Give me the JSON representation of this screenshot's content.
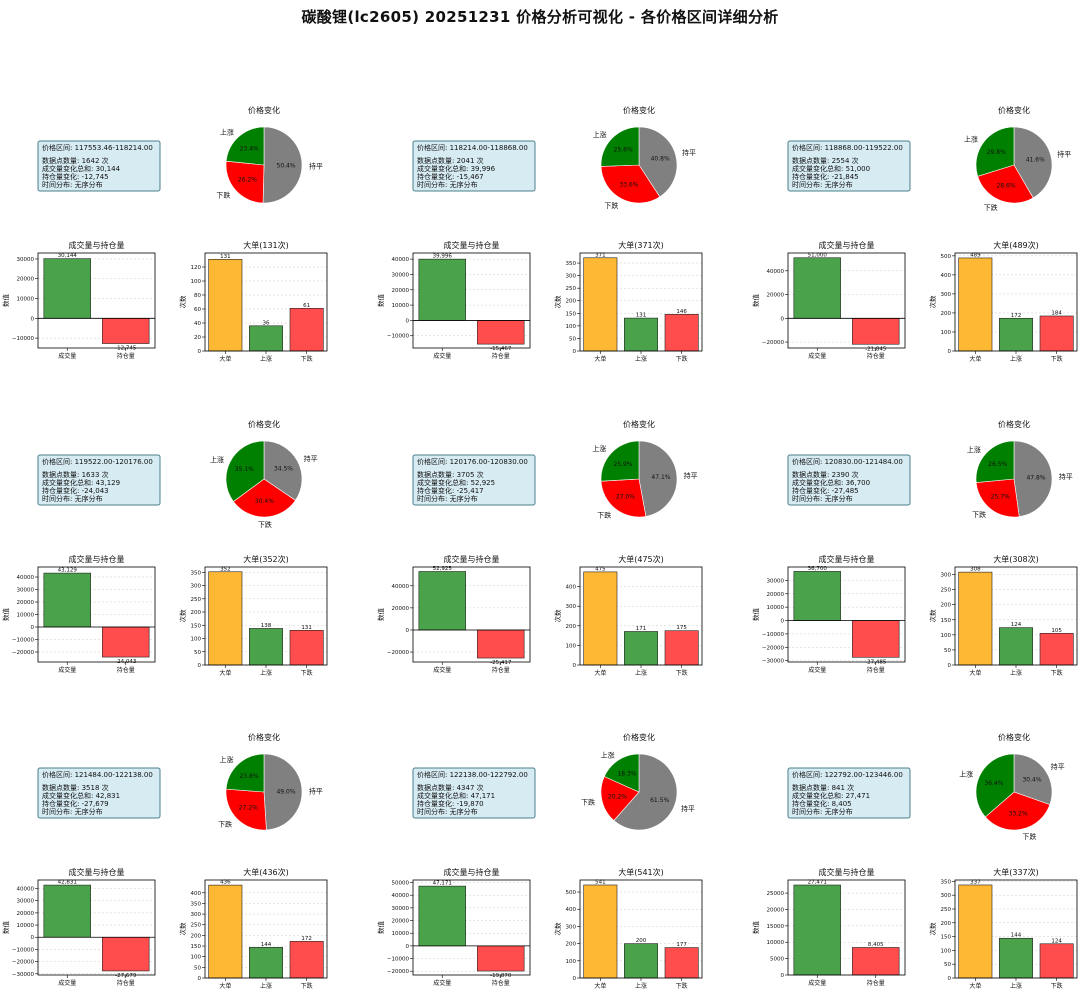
{
  "title": "碳酸锂(lc2605) 20251231 价格分析可视化 - 各价格区间详细分析",
  "colors": {
    "up": "#008000",
    "down": "#ff0000",
    "flat": "#808080",
    "big": "#ffb833",
    "green_bar": "#4aa34a",
    "red_bar": "#ff4d4d",
    "info_bg": "#d6ebf2",
    "info_border": "#4a7f8c"
  },
  "labels": {
    "pie_title": "价格变化",
    "pie_up": "上涨",
    "pie_down": "下跌",
    "pie_flat": "持平",
    "vol_title": "成交量与持仓量",
    "vol_ylabel": "数值",
    "vol_cat1": "成交量",
    "vol_cat2": "持仓量",
    "big_ylabel": "次数",
    "big_cat1": "大单",
    "big_cat2": "上涨",
    "big_cat3": "下跌"
  },
  "chart_data": [
    {
      "info": {
        "range": "价格区间: 117553.46-118214.00",
        "count": "数据点数量: 1642 次",
        "vol_sum": "成交量变化总和: 30,144",
        "oi": "持仓量变化: -12,745",
        "dist": "时间分布: 无序分布"
      },
      "pie": {
        "type": "pie",
        "up": 23.4,
        "down": 26.2,
        "flat": 50.4,
        "up_label": "23.4%",
        "down_label": "26.2%",
        "flat_label": "50.4%"
      },
      "vol": {
        "type": "bar",
        "title": "成交量与持仓量",
        "values": [
          30144,
          -12745
        ],
        "value_labels": [
          "30,144",
          "-12,745"
        ],
        "ylim": [
          -15000,
          33000
        ],
        "ticks": [
          -10000,
          0,
          10000,
          20000,
          30000
        ],
        "tick_labels": [
          "−10000",
          "0",
          "10000",
          "20000",
          "30000"
        ]
      },
      "big": {
        "type": "bar",
        "title": "大单(131次)",
        "values": [
          131,
          36,
          61
        ],
        "value_labels": [
          "131",
          "36",
          "61"
        ],
        "ylim": [
          0,
          140
        ],
        "ticks": [
          0,
          20,
          40,
          60,
          80,
          100,
          120
        ],
        "tick_labels": [
          "0",
          "20",
          "40",
          "60",
          "80",
          "100",
          "120"
        ]
      }
    },
    {
      "info": {
        "range": "价格区间: 118214.00-118868.00",
        "count": "数据点数量: 2041 次",
        "vol_sum": "成交量变化总和: 39,996",
        "oi": "持仓量变化: -15,467",
        "dist": "时间分布: 无序分布"
      },
      "pie": {
        "type": "pie",
        "up": 25.6,
        "down": 33.6,
        "flat": 40.8,
        "up_label": "25.6%",
        "down_label": "33.6%",
        "flat_label": "40.8%"
      },
      "vol": {
        "type": "bar",
        "title": "成交量与持仓量",
        "values": [
          39996,
          -15467
        ],
        "value_labels": [
          "39,996",
          "-15,467"
        ],
        "ylim": [
          -18000,
          44000
        ],
        "ticks": [
          -10000,
          0,
          10000,
          20000,
          30000,
          40000
        ],
        "tick_labels": [
          "−10000",
          "0",
          "10000",
          "20000",
          "30000",
          "40000"
        ]
      },
      "big": {
        "type": "bar",
        "title": "大单(371次)",
        "values": [
          371,
          131,
          146
        ],
        "value_labels": [
          "371",
          "131",
          "146"
        ],
        "ylim": [
          0,
          390
        ],
        "ticks": [
          0,
          50,
          100,
          150,
          200,
          250,
          300,
          350
        ],
        "tick_labels": [
          "0",
          "50",
          "100",
          "150",
          "200",
          "250",
          "300",
          "350"
        ]
      }
    },
    {
      "info": {
        "range": "价格区间: 118868.00-119522.00",
        "count": "数据点数量: 2554 次",
        "vol_sum": "成交量变化总和: 51,000",
        "oi": "持仓量变化: -21,845",
        "dist": "时间分布: 无序分布"
      },
      "pie": {
        "type": "pie",
        "up": 29.8,
        "down": 28.6,
        "flat": 41.6,
        "up_label": "29.8%",
        "down_label": "28.6%",
        "flat_label": "41.6%"
      },
      "vol": {
        "type": "bar",
        "title": "成交量与持仓量",
        "values": [
          51000,
          -21845
        ],
        "value_labels": [
          "51,000",
          "-21,845"
        ],
        "ylim": [
          -25000,
          55000
        ],
        "ticks": [
          -20000,
          0,
          20000,
          40000
        ],
        "tick_labels": [
          "−20000",
          "0",
          "20000",
          "40000"
        ]
      },
      "big": {
        "type": "bar",
        "title": "大单(489次)",
        "values": [
          489,
          172,
          184
        ],
        "value_labels": [
          "489",
          "172",
          "184"
        ],
        "ylim": [
          0,
          515
        ],
        "ticks": [
          0,
          100,
          200,
          300,
          400,
          500
        ],
        "tick_labels": [
          "0",
          "100",
          "200",
          "300",
          "400",
          "500"
        ]
      }
    },
    {
      "info": {
        "range": "价格区间: 119522.00-120176.00",
        "count": "数据点数量: 1633 次",
        "vol_sum": "成交量变化总和: 43,129",
        "oi": "持仓量变化: -24,043",
        "dist": "时间分布: 无序分布"
      },
      "pie": {
        "type": "pie",
        "up": 35.1,
        "down": 30.4,
        "flat": 34.5,
        "up_label": "35.1%",
        "down_label": "30.4%",
        "flat_label": "34.5%"
      },
      "vol": {
        "type": "bar",
        "title": "成交量与持仓量",
        "values": [
          43129,
          -24043
        ],
        "value_labels": [
          "43,129",
          "-24,043"
        ],
        "ylim": [
          -28000,
          48000
        ],
        "ticks": [
          -20000,
          -10000,
          0,
          10000,
          20000,
          30000,
          40000
        ],
        "tick_labels": [
          "−20000",
          "−10000",
          "0",
          "10000",
          "20000",
          "30000",
          "40000"
        ]
      },
      "big": {
        "type": "bar",
        "title": "大单(352次)",
        "values": [
          352,
          138,
          131
        ],
        "value_labels": [
          "352",
          "138",
          "131"
        ],
        "ylim": [
          0,
          370
        ],
        "ticks": [
          0,
          50,
          100,
          150,
          200,
          250,
          300,
          350
        ],
        "tick_labels": [
          "0",
          "50",
          "100",
          "150",
          "200",
          "250",
          "300",
          "350"
        ]
      }
    },
    {
      "info": {
        "range": "价格区间: 120176.00-120830.00",
        "count": "数据点数量: 3705 次",
        "vol_sum": "成交量变化总和: 52,925",
        "oi": "持仓量变化: -25,417",
        "dist": "时间分布: 无序分布"
      },
      "pie": {
        "type": "pie",
        "up": 25.9,
        "down": 27.0,
        "flat": 47.1,
        "up_label": "25.9%",
        "down_label": "27.0%",
        "flat_label": "47.1%"
      },
      "vol": {
        "type": "bar",
        "title": "成交量与持仓量",
        "values": [
          52925,
          -25417
        ],
        "value_labels": [
          "52,925",
          "-25,417"
        ],
        "ylim": [
          -29000,
          57000
        ],
        "ticks": [
          -20000,
          0,
          20000,
          40000
        ],
        "tick_labels": [
          "−20000",
          "0",
          "20000",
          "40000"
        ]
      },
      "big": {
        "type": "bar",
        "title": "大单(475次)",
        "values": [
          475,
          171,
          175
        ],
        "value_labels": [
          "475",
          "171",
          "175"
        ],
        "ylim": [
          0,
          500
        ],
        "ticks": [
          0,
          100,
          200,
          300,
          400
        ],
        "tick_labels": [
          "0",
          "100",
          "200",
          "300",
          "400"
        ]
      }
    },
    {
      "info": {
        "range": "价格区间: 120830.00-121484.00",
        "count": "数据点数量: 2390 次",
        "vol_sum": "成交量变化总和: 36,700",
        "oi": "持仓量变化: -27,485",
        "dist": "时间分布: 无序分布"
      },
      "pie": {
        "type": "pie",
        "up": 26.5,
        "down": 25.7,
        "flat": 47.8,
        "up_label": "26.5%",
        "down_label": "25.7%",
        "flat_label": "47.8%"
      },
      "vol": {
        "type": "bar",
        "title": "成交量与持仓量",
        "values": [
          36700,
          -27485
        ],
        "value_labels": [
          "36,700",
          "-27,485"
        ],
        "ylim": [
          -31000,
          40000
        ],
        "ticks": [
          -30000,
          -20000,
          -10000,
          0,
          10000,
          20000,
          30000
        ],
        "tick_labels": [
          "−30000",
          "−20000",
          "−10000",
          "0",
          "10000",
          "20000",
          "30000"
        ]
      },
      "big": {
        "type": "bar",
        "title": "大单(308次)",
        "values": [
          308,
          124,
          105
        ],
        "value_labels": [
          "308",
          "124",
          "105"
        ],
        "ylim": [
          0,
          325
        ],
        "ticks": [
          0,
          50,
          100,
          150,
          200,
          250,
          300
        ],
        "tick_labels": [
          "0",
          "50",
          "100",
          "150",
          "200",
          "250",
          "300"
        ]
      }
    },
    {
      "info": {
        "range": "价格区间: 121484.00-122138.00",
        "count": "数据点数量: 3518 次",
        "vol_sum": "成交量变化总和: 42,831",
        "oi": "持仓量变化: -27,679",
        "dist": "时间分布: 无序分布"
      },
      "pie": {
        "type": "pie",
        "up": 23.8,
        "down": 27.2,
        "flat": 49.0,
        "up_label": "23.8%",
        "down_label": "27.2%",
        "flat_label": "49.0%"
      },
      "vol": {
        "type": "bar",
        "title": "成交量与持仓量",
        "values": [
          42831,
          -27679
        ],
        "value_labels": [
          "42,831",
          "-27,679"
        ],
        "ylim": [
          -31000,
          47000
        ],
        "ticks": [
          -30000,
          -20000,
          -10000,
          0,
          10000,
          20000,
          30000,
          40000
        ],
        "tick_labels": [
          "−30000",
          "−20000",
          "−10000",
          "0",
          "10000",
          "20000",
          "30000",
          "40000"
        ]
      },
      "big": {
        "type": "bar",
        "title": "大单(436次)",
        "values": [
          436,
          144,
          172
        ],
        "value_labels": [
          "436",
          "144",
          "172"
        ],
        "ylim": [
          0,
          460
        ],
        "ticks": [
          0,
          50,
          100,
          150,
          200,
          250,
          300,
          350,
          400
        ],
        "tick_labels": [
          "0",
          "50",
          "100",
          "150",
          "200",
          "250",
          "300",
          "350",
          "400"
        ]
      }
    },
    {
      "info": {
        "range": "价格区间: 122138.00-122792.00",
        "count": "数据点数量: 4347 次",
        "vol_sum": "成交量变化总和: 47,171",
        "oi": "持仓量变化: -19,870",
        "dist": "时间分布: 无序分布"
      },
      "pie": {
        "type": "pie",
        "up": 18.3,
        "down": 20.2,
        "flat": 61.5,
        "up_label": "18.3%",
        "down_label": "20.2%",
        "flat_label": "61.5%"
      },
      "vol": {
        "type": "bar",
        "title": "成交量与持仓量",
        "values": [
          47171,
          -19870
        ],
        "value_labels": [
          "47,171",
          "-19,870"
        ],
        "ylim": [
          -23000,
          52000
        ],
        "ticks": [
          -20000,
          -10000,
          0,
          10000,
          20000,
          30000,
          40000,
          50000
        ],
        "tick_labels": [
          "−20000",
          "−10000",
          "0",
          "10000",
          "20000",
          "30000",
          "40000",
          "50000"
        ]
      },
      "big": {
        "type": "bar",
        "title": "大单(541次)",
        "values": [
          541,
          200,
          177
        ],
        "value_labels": [
          "541",
          "200",
          "177"
        ],
        "ylim": [
          0,
          570
        ],
        "ticks": [
          0,
          100,
          200,
          300,
          400,
          500
        ],
        "tick_labels": [
          "0",
          "100",
          "200",
          "300",
          "400",
          "500"
        ]
      }
    },
    {
      "info": {
        "range": "价格区间: 122792.00-123446.00",
        "count": "数据点数量: 841 次",
        "vol_sum": "成交量变化总和: 27,471",
        "oi": "持仓量变化: 8,405",
        "dist": "时间分布: 无序分布"
      },
      "pie": {
        "type": "pie",
        "up": 36.4,
        "down": 33.2,
        "flat": 30.4,
        "up_label": "36.4%",
        "down_label": "33.2%",
        "flat_label": "30.4%"
      },
      "vol": {
        "type": "bar",
        "title": "成交量与持仓量",
        "values": [
          27471,
          8405
        ],
        "value_labels": [
          "27,471",
          "8,405"
        ],
        "ylim": [
          0,
          29000
        ],
        "ticks": [
          0,
          5000,
          10000,
          15000,
          20000,
          25000
        ],
        "tick_labels": [
          "0",
          "5000",
          "10000",
          "15000",
          "20000",
          "25000"
        ]
      },
      "big": {
        "type": "bar",
        "title": "大单(337次)",
        "values": [
          337,
          144,
          124
        ],
        "value_labels": [
          "337",
          "144",
          "124"
        ],
        "ylim": [
          0,
          355
        ],
        "ticks": [
          0,
          50,
          100,
          150,
          200,
          250,
          300,
          350
        ],
        "tick_labels": [
          "0",
          "50",
          "100",
          "150",
          "200",
          "250",
          "300",
          "350"
        ]
      }
    }
  ]
}
